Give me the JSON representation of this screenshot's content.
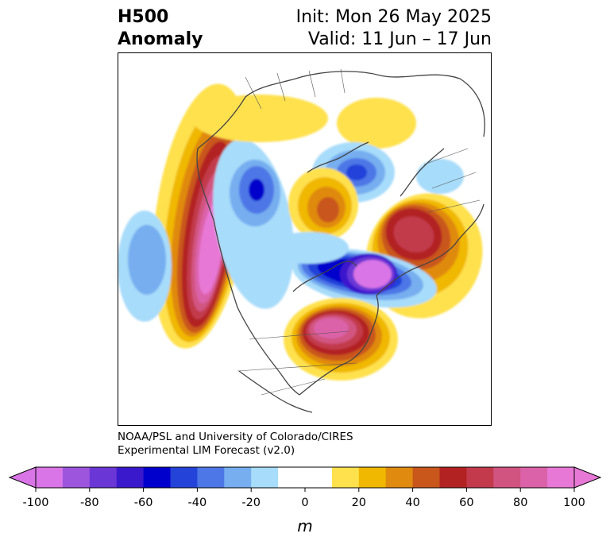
{
  "header": {
    "title_line1": "H500",
    "title_line2": "Anomaly",
    "init": "Init: Mon 26 May 2025",
    "valid": "Valid: 11 Jun – 17 Jun"
  },
  "credit": {
    "line1": "NOAA/PSL and University of Colorado/CIRES",
    "line2": "Experimental LIM Forecast (v2.0)"
  },
  "colorbar": {
    "unit": "m",
    "ticks": [
      "-100",
      "-80",
      "-60",
      "-40",
      "-20",
      "0",
      "20",
      "40",
      "60",
      "80",
      "100"
    ],
    "colors": [
      "#d975e6",
      "#9d55de",
      "#6a37d6",
      "#3a18cc",
      "#0000cc",
      "#2443d9",
      "#4d77e6",
      "#76aef0",
      "#a7dcfa",
      "#ffffff",
      "#ffffff",
      "#ffe14d",
      "#f0b800",
      "#e08a10",
      "#c9561a",
      "#b22222",
      "#c23a4c",
      "#d15480",
      "#db62a8",
      "#e878d6"
    ],
    "low_arrow_color": "#d975e6",
    "high_arrow_color": "#e878d6"
  }
}
